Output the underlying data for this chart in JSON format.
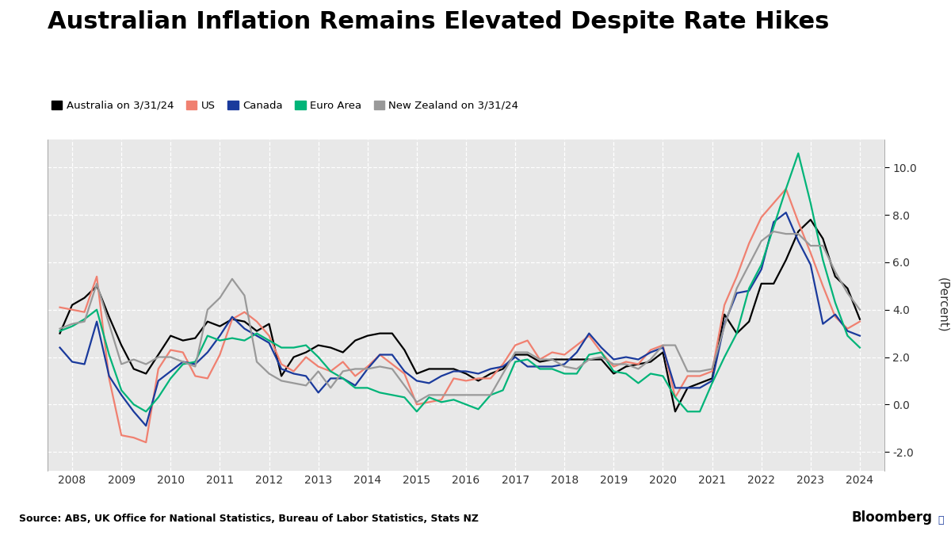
{
  "title": "Australian Inflation Remains Elevated Despite Rate Hikes",
  "source": "Source: ABS, UK Office for National Statistics, Bureau of Labor Statistics, Stats NZ",
  "ylabel": "(Percent)",
  "ylim": [
    -2.8,
    11.2
  ],
  "yticks": [
    -2.0,
    0.0,
    2.0,
    4.0,
    6.0,
    8.0,
    10.0
  ],
  "plot_bg": "#e8e8e8",
  "fig_bg": "#ffffff",
  "grid_color": "#ffffff",
  "legend": [
    {
      "label": "Australia on 3/31/24",
      "color": "#000000"
    },
    {
      "label": "US",
      "color": "#f08070"
    },
    {
      "label": "Canada",
      "color": "#1a3a9c"
    },
    {
      "label": "Euro Area",
      "color": "#00b478"
    },
    {
      "label": "New Zealand on 3/31/24",
      "color": "#999999"
    }
  ],
  "series": {
    "australia": {
      "color": "#000000",
      "lw": 1.6,
      "dates": [
        2007.75,
        2008.0,
        2008.25,
        2008.5,
        2008.75,
        2009.0,
        2009.25,
        2009.5,
        2009.75,
        2010.0,
        2010.25,
        2010.5,
        2010.75,
        2011.0,
        2011.25,
        2011.5,
        2011.75,
        2012.0,
        2012.25,
        2012.5,
        2012.75,
        2013.0,
        2013.25,
        2013.5,
        2013.75,
        2014.0,
        2014.25,
        2014.5,
        2014.75,
        2015.0,
        2015.25,
        2015.5,
        2015.75,
        2016.0,
        2016.25,
        2016.5,
        2016.75,
        2017.0,
        2017.25,
        2017.5,
        2017.75,
        2018.0,
        2018.25,
        2018.5,
        2018.75,
        2019.0,
        2019.25,
        2019.5,
        2019.75,
        2020.0,
        2020.25,
        2020.5,
        2020.75,
        2021.0,
        2021.25,
        2021.5,
        2021.75,
        2022.0,
        2022.25,
        2022.5,
        2022.75,
        2023.0,
        2023.25,
        2023.5,
        2023.75,
        2024.0
      ],
      "values": [
        3.0,
        4.2,
        4.5,
        5.0,
        3.7,
        2.5,
        1.5,
        1.3,
        2.1,
        2.9,
        2.7,
        2.8,
        3.5,
        3.3,
        3.6,
        3.5,
        3.1,
        3.4,
        1.2,
        2.0,
        2.2,
        2.5,
        2.4,
        2.2,
        2.7,
        2.9,
        3.0,
        3.0,
        2.3,
        1.3,
        1.5,
        1.5,
        1.5,
        1.3,
        1.0,
        1.3,
        1.5,
        2.1,
        2.1,
        1.8,
        1.9,
        1.9,
        1.9,
        1.9,
        1.9,
        1.3,
        1.6,
        1.7,
        1.8,
        2.2,
        -0.3,
        0.7,
        0.9,
        1.1,
        3.8,
        3.0,
        3.5,
        5.1,
        5.1,
        6.1,
        7.3,
        7.8,
        7.0,
        5.4,
        4.9,
        3.6
      ]
    },
    "us": {
      "color": "#f08070",
      "lw": 1.6,
      "dates": [
        2007.75,
        2008.0,
        2008.25,
        2008.5,
        2008.75,
        2009.0,
        2009.25,
        2009.5,
        2009.75,
        2010.0,
        2010.25,
        2010.5,
        2010.75,
        2011.0,
        2011.25,
        2011.5,
        2011.75,
        2012.0,
        2012.25,
        2012.5,
        2012.75,
        2013.0,
        2013.25,
        2013.5,
        2013.75,
        2014.0,
        2014.25,
        2014.5,
        2014.75,
        2015.0,
        2015.25,
        2015.5,
        2015.75,
        2016.0,
        2016.25,
        2016.5,
        2016.75,
        2017.0,
        2017.25,
        2017.5,
        2017.75,
        2018.0,
        2018.25,
        2018.5,
        2018.75,
        2019.0,
        2019.25,
        2019.5,
        2019.75,
        2020.0,
        2020.25,
        2020.5,
        2020.75,
        2021.0,
        2021.25,
        2021.5,
        2021.75,
        2022.0,
        2022.25,
        2022.5,
        2022.75,
        2023.0,
        2023.25,
        2023.5,
        2023.75,
        2024.0
      ],
      "values": [
        4.1,
        4.0,
        3.9,
        5.4,
        1.1,
        -1.3,
        -1.4,
        -1.6,
        1.5,
        2.3,
        2.2,
        1.2,
        1.1,
        2.1,
        3.6,
        3.9,
        3.5,
        2.9,
        1.7,
        1.4,
        2.0,
        1.6,
        1.4,
        1.8,
        1.2,
        1.6,
        2.1,
        1.7,
        1.3,
        0.0,
        0.1,
        0.2,
        1.1,
        1.0,
        1.1,
        1.1,
        1.7,
        2.5,
        2.7,
        1.9,
        2.2,
        2.1,
        2.5,
        2.9,
        2.2,
        1.6,
        1.8,
        1.7,
        2.3,
        2.5,
        0.3,
        1.2,
        1.2,
        1.4,
        4.2,
        5.4,
        6.8,
        7.9,
        8.5,
        9.1,
        7.7,
        6.4,
        5.0,
        3.7,
        3.2,
        3.5
      ]
    },
    "canada": {
      "color": "#1a3a9c",
      "lw": 1.6,
      "dates": [
        2007.75,
        2008.0,
        2008.25,
        2008.5,
        2008.75,
        2009.0,
        2009.25,
        2009.5,
        2009.75,
        2010.0,
        2010.25,
        2010.5,
        2010.75,
        2011.0,
        2011.25,
        2011.5,
        2011.75,
        2012.0,
        2012.25,
        2012.5,
        2012.75,
        2013.0,
        2013.25,
        2013.5,
        2013.75,
        2014.0,
        2014.25,
        2014.5,
        2014.75,
        2015.0,
        2015.25,
        2015.5,
        2015.75,
        2016.0,
        2016.25,
        2016.5,
        2016.75,
        2017.0,
        2017.25,
        2017.5,
        2017.75,
        2018.0,
        2018.25,
        2018.5,
        2018.75,
        2019.0,
        2019.25,
        2019.5,
        2019.75,
        2020.0,
        2020.25,
        2020.5,
        2020.75,
        2021.0,
        2021.25,
        2021.5,
        2021.75,
        2022.0,
        2022.25,
        2022.5,
        2022.75,
        2023.0,
        2023.25,
        2023.5,
        2023.75,
        2024.0
      ],
      "values": [
        2.4,
        1.8,
        1.7,
        3.5,
        1.2,
        0.4,
        -0.3,
        -0.9,
        1.0,
        1.4,
        1.8,
        1.7,
        2.2,
        2.9,
        3.7,
        3.2,
        2.9,
        2.6,
        1.5,
        1.3,
        1.2,
        0.5,
        1.1,
        1.1,
        0.8,
        1.5,
        2.1,
        2.1,
        1.4,
        1.0,
        0.9,
        1.2,
        1.4,
        1.4,
        1.3,
        1.5,
        1.6,
        2.0,
        1.6,
        1.6,
        1.6,
        1.7,
        2.2,
        3.0,
        2.4,
        1.9,
        2.0,
        1.9,
        2.2,
        2.4,
        0.7,
        0.7,
        0.7,
        1.0,
        3.4,
        4.7,
        4.8,
        5.7,
        7.7,
        8.1,
        6.9,
        5.9,
        3.4,
        3.8,
        3.1,
        2.9
      ]
    },
    "euro": {
      "color": "#00b478",
      "lw": 1.6,
      "dates": [
        2007.75,
        2008.0,
        2008.25,
        2008.5,
        2008.75,
        2009.0,
        2009.25,
        2009.5,
        2009.75,
        2010.0,
        2010.25,
        2010.5,
        2010.75,
        2011.0,
        2011.25,
        2011.5,
        2011.75,
        2012.0,
        2012.25,
        2012.5,
        2012.75,
        2013.0,
        2013.25,
        2013.5,
        2013.75,
        2014.0,
        2014.25,
        2014.5,
        2014.75,
        2015.0,
        2015.25,
        2015.5,
        2015.75,
        2016.0,
        2016.25,
        2016.5,
        2016.75,
        2017.0,
        2017.25,
        2017.5,
        2017.75,
        2018.0,
        2018.25,
        2018.5,
        2018.75,
        2019.0,
        2019.25,
        2019.5,
        2019.75,
        2020.0,
        2020.25,
        2020.5,
        2020.75,
        2021.0,
        2021.25,
        2021.5,
        2021.75,
        2022.0,
        2022.25,
        2022.5,
        2022.75,
        2023.0,
        2023.25,
        2023.5,
        2023.75,
        2024.0
      ],
      "values": [
        3.1,
        3.3,
        3.6,
        4.0,
        2.1,
        0.6,
        0.0,
        -0.3,
        0.3,
        1.1,
        1.7,
        1.8,
        2.9,
        2.7,
        2.8,
        2.7,
        3.0,
        2.7,
        2.4,
        2.4,
        2.5,
        2.0,
        1.4,
        1.1,
        0.7,
        0.7,
        0.5,
        0.4,
        0.3,
        -0.3,
        0.3,
        0.1,
        0.2,
        0.0,
        -0.2,
        0.4,
        0.6,
        1.8,
        1.9,
        1.5,
        1.5,
        1.3,
        1.3,
        2.1,
        2.2,
        1.4,
        1.3,
        0.9,
        1.3,
        1.2,
        0.3,
        -0.3,
        -0.3,
        0.9,
        2.0,
        3.0,
        4.9,
        5.9,
        7.5,
        9.1,
        10.6,
        8.5,
        6.1,
        4.3,
        2.9,
        2.4
      ]
    },
    "nz": {
      "color": "#999999",
      "lw": 1.6,
      "dates": [
        2007.75,
        2008.0,
        2008.25,
        2008.5,
        2008.75,
        2009.0,
        2009.25,
        2009.5,
        2009.75,
        2010.0,
        2010.25,
        2010.5,
        2010.75,
        2011.0,
        2011.25,
        2011.5,
        2011.75,
        2012.0,
        2012.25,
        2012.5,
        2012.75,
        2013.0,
        2013.25,
        2013.5,
        2013.75,
        2014.0,
        2014.25,
        2014.5,
        2014.75,
        2015.0,
        2015.25,
        2015.5,
        2015.75,
        2016.0,
        2016.25,
        2016.5,
        2016.75,
        2017.0,
        2017.25,
        2017.5,
        2017.75,
        2018.0,
        2018.25,
        2018.5,
        2018.75,
        2019.0,
        2019.25,
        2019.5,
        2019.75,
        2020.0,
        2020.25,
        2020.5,
        2020.75,
        2021.0,
        2021.25,
        2021.5,
        2021.75,
        2022.0,
        2022.25,
        2022.5,
        2022.75,
        2023.0,
        2023.25,
        2023.5,
        2023.75,
        2024.0
      ],
      "values": [
        3.2,
        3.4,
        3.5,
        5.1,
        3.4,
        1.7,
        1.9,
        1.7,
        2.0,
        2.0,
        1.8,
        1.6,
        4.0,
        4.5,
        5.3,
        4.6,
        1.8,
        1.3,
        1.0,
        0.9,
        0.8,
        1.4,
        0.7,
        1.4,
        1.5,
        1.5,
        1.6,
        1.5,
        0.8,
        0.1,
        0.4,
        0.4,
        0.4,
        0.4,
        0.4,
        0.4,
        1.3,
        2.2,
        2.2,
        1.9,
        1.9,
        1.6,
        1.5,
        1.9,
        2.0,
        1.7,
        1.7,
        1.5,
        1.9,
        2.5,
        2.5,
        1.4,
        1.4,
        1.5,
        3.3,
        4.9,
        5.9,
        6.9,
        7.3,
        7.2,
        7.2,
        6.7,
        6.7,
        5.6,
        4.7,
        4.0
      ]
    }
  }
}
